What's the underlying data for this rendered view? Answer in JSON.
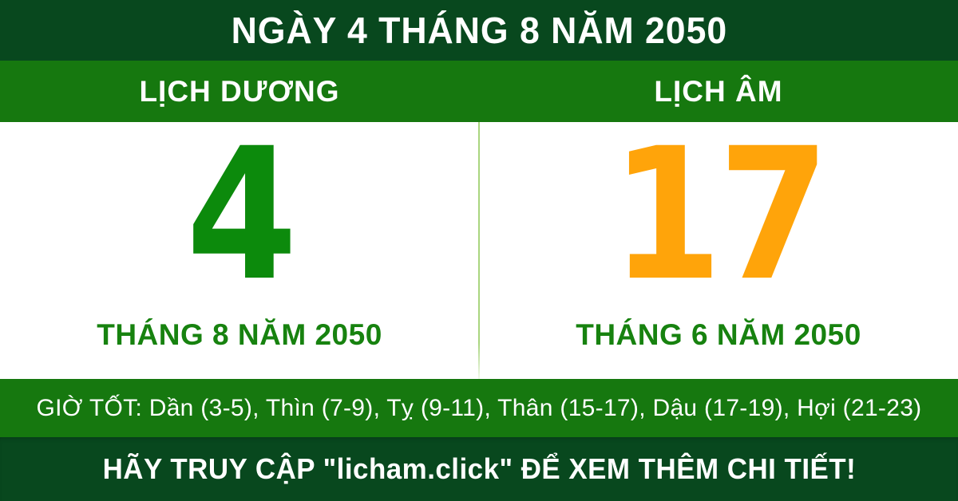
{
  "theme": {
    "dark_green": "#08481e",
    "mid_green": "#16780f",
    "solar_day_green": "#0c8a0c",
    "lunar_day_orange": "#ffa40a",
    "month_text_green": "#17820f",
    "divider_green": "#a9d57f",
    "text_white": "#ffffff",
    "panel_white": "#ffffff"
  },
  "header": {
    "title": "NGÀY 4 THÁNG 8 NĂM 2050"
  },
  "calendar": {
    "solar": {
      "label": "LỊCH DƯƠNG",
      "day": "4",
      "month_year": "THÁNG 8 NĂM 2050"
    },
    "lunar": {
      "label": "LỊCH ÂM",
      "day": "17",
      "month_year": "THÁNG 6 NĂM 2050"
    }
  },
  "good_hours": {
    "text": "GIỜ TỐT: Dần (3-5), Thìn (7-9), Tỵ (9-11), Thân (15-17), Dậu (17-19), Hợi (21-23)"
  },
  "footer": {
    "text": "HÃY TRUY CẬP \"licham.click\" ĐỂ XEM THÊM CHI TIẾT!"
  }
}
